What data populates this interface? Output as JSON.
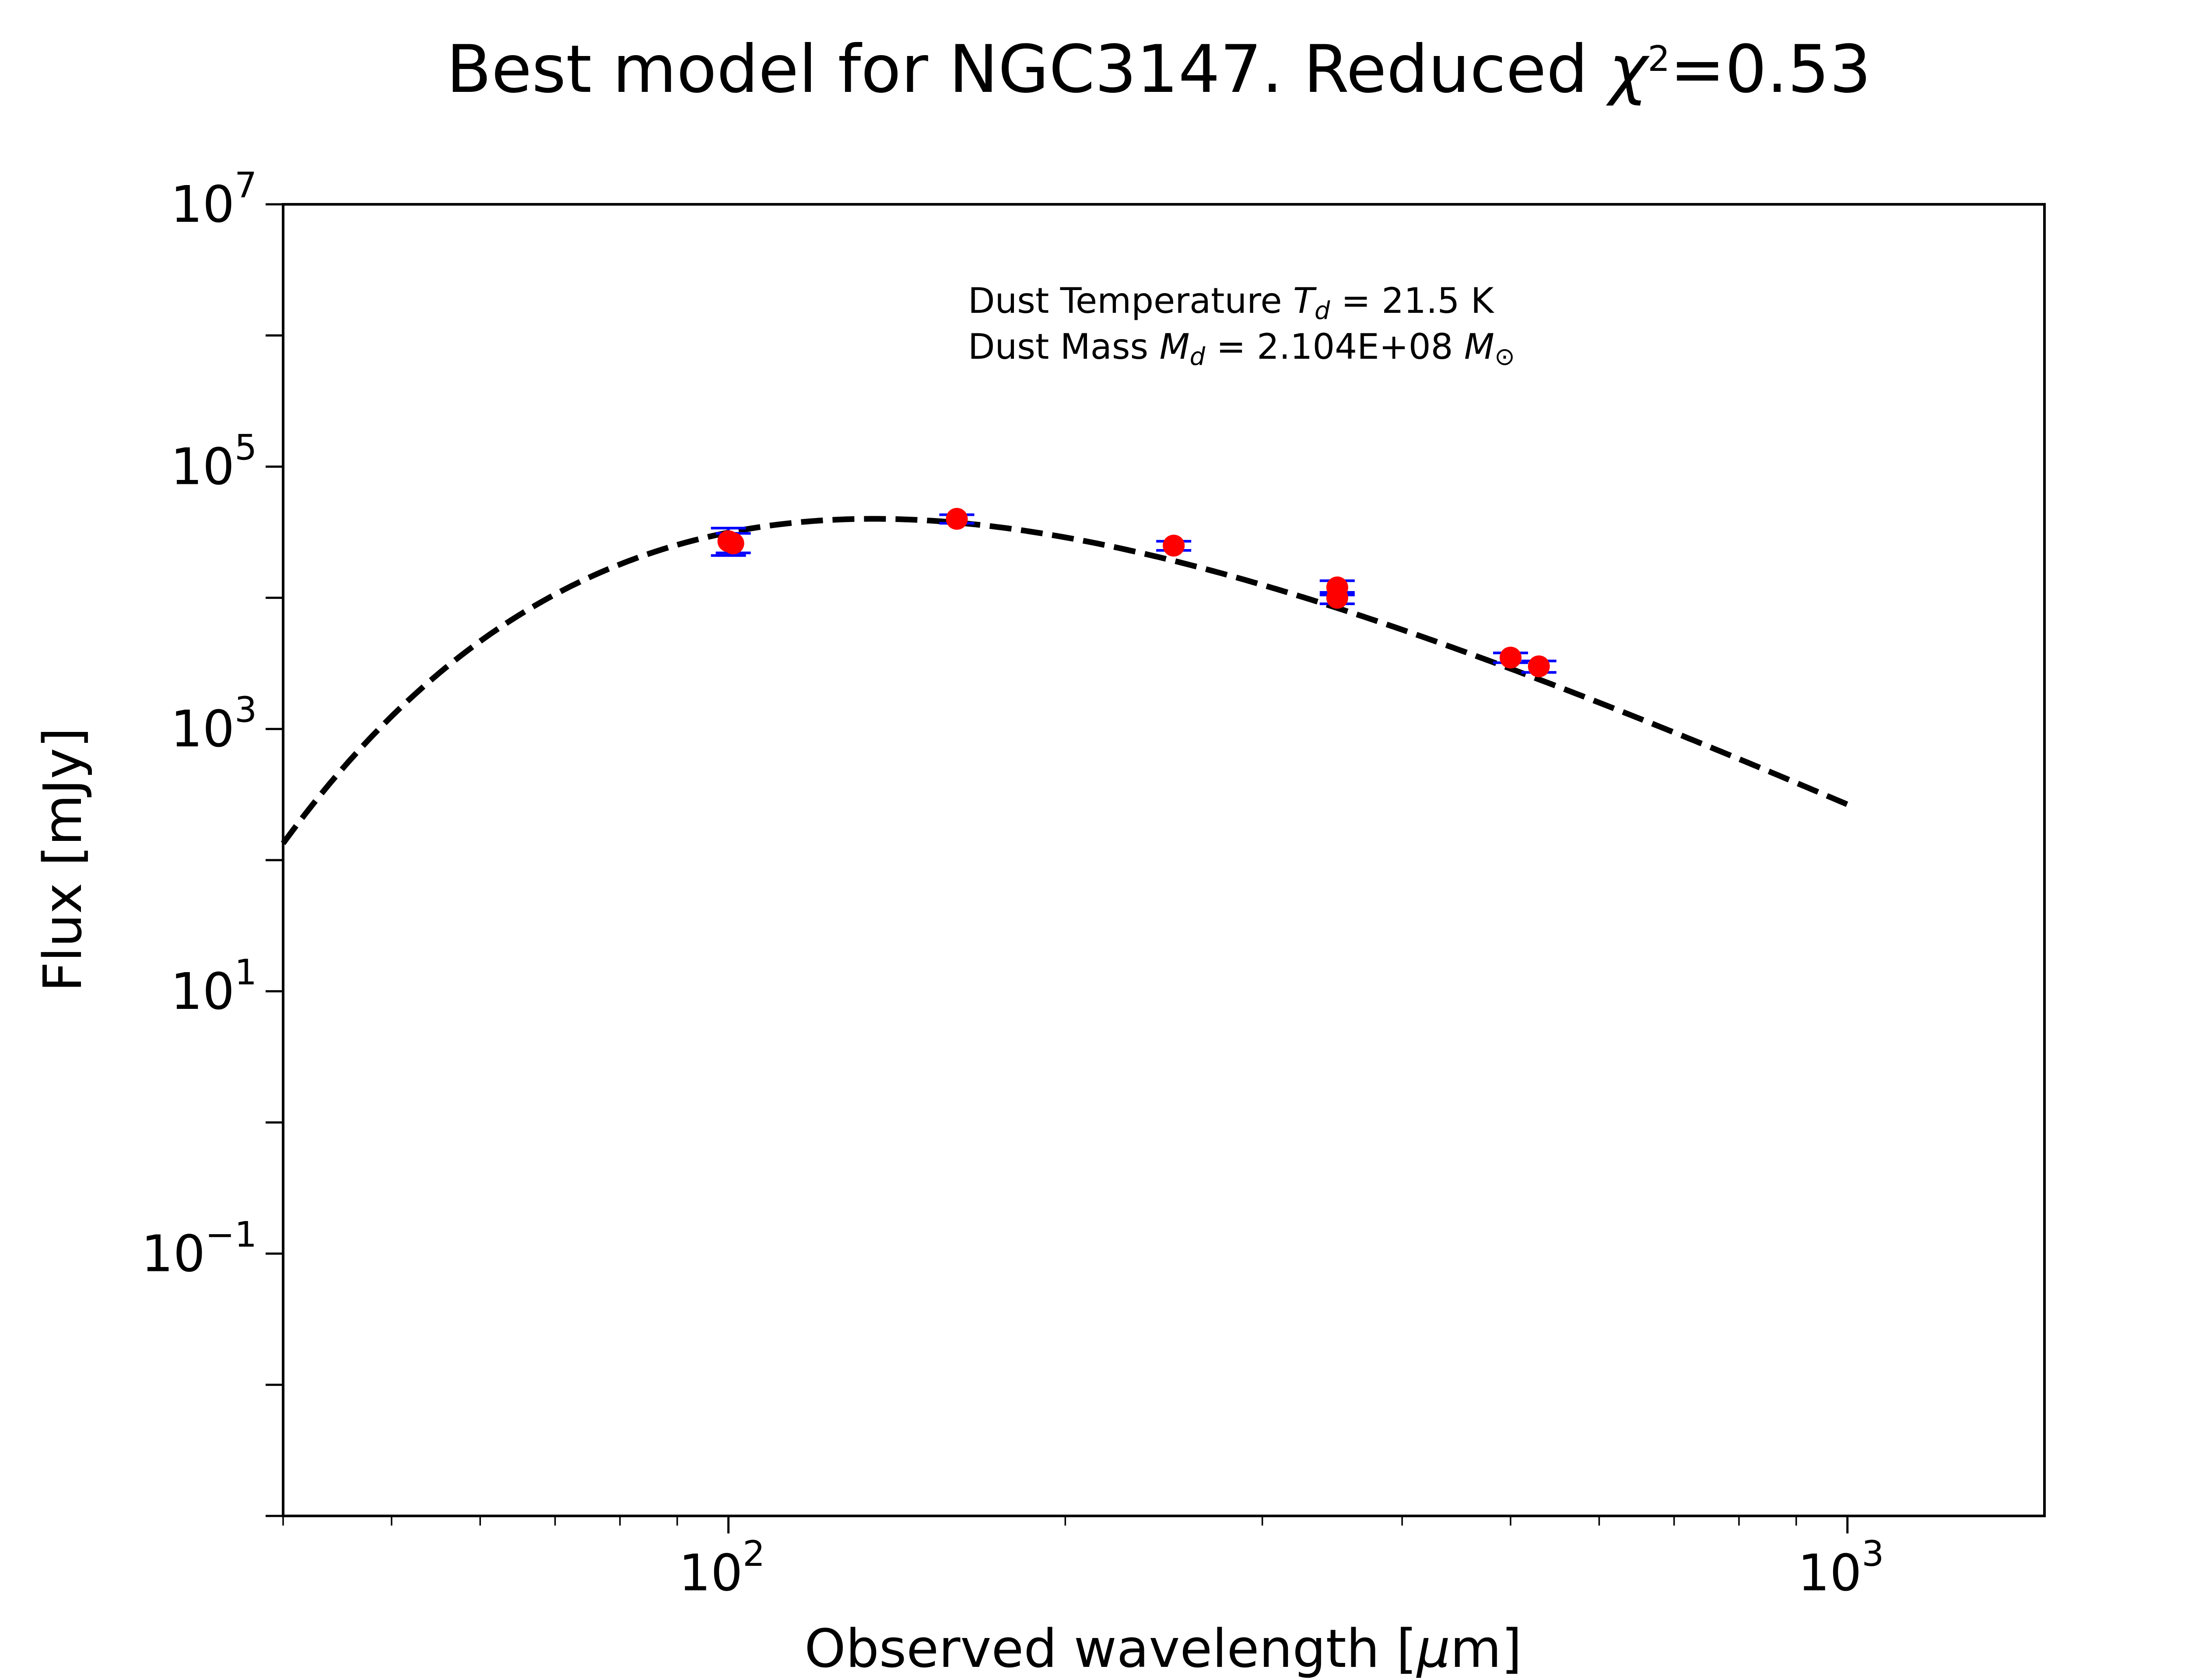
{
  "chart_data": {
    "type": "scatter",
    "title_text": "Best model for NGC3147. Reduced ",
    "title_chi": "χ",
    "title_chi_exp": "2",
    "title_value": "=0.53",
    "xlabel_text": "Observed wavelength [",
    "xlabel_unit": "μ",
    "xlabel_end": "m]",
    "ylabel": "Flux [mJy]",
    "x_scale": "log",
    "y_scale": "log",
    "xlim": [
      40,
      1500
    ],
    "ylim": [
      0.001,
      10000000
    ],
    "x_ticks": [
      {
        "value": 100,
        "base": "10",
        "exp": "2"
      },
      {
        "value": 1000,
        "base": "10",
        "exp": "3"
      }
    ],
    "y_ticks": [
      {
        "value": 0.1,
        "base": "10",
        "exp": "−1"
      },
      {
        "value": 10,
        "base": "10",
        "exp": "1"
      },
      {
        "value": 1000,
        "base": "10",
        "exp": "3"
      },
      {
        "value": 100000,
        "base": "10",
        "exp": "5"
      },
      {
        "value": 10000000,
        "base": "10",
        "exp": "7"
      }
    ],
    "annotation_lines": [
      {
        "label": "Dust Temperature ",
        "symbol": "T",
        "sub": "d",
        "value": " = 21.5 K",
        "unit": "",
        "unit_sub": ""
      },
      {
        "label": "Dust Mass ",
        "symbol": "M",
        "sub": "d",
        "value": " = 2.104E+08 ",
        "unit": "M",
        "unit_sub": "⊙"
      }
    ],
    "model": {
      "name": "",
      "style": "dashed",
      "color": "#000000",
      "temperature_K": 21.5,
      "beta": 2.0,
      "peak_flux_mJy": 40000,
      "x_range": [
        40,
        1000
      ]
    },
    "points": [
      {
        "x": 100,
        "y": 27000,
        "err_low": 21000,
        "err_high": 34000
      },
      {
        "x": 101,
        "y": 26000,
        "err_low": 22000,
        "err_high": 31000
      },
      {
        "x": 160,
        "y": 40000,
        "err_low": 37000,
        "err_high": 43000
      },
      {
        "x": 250,
        "y": 25000,
        "err_low": 23000,
        "err_high": 27000
      },
      {
        "x": 350,
        "y": 12000,
        "err_low": 10500,
        "err_high": 13500
      },
      {
        "x": 350,
        "y": 10000,
        "err_low": 9000,
        "err_high": 11000
      },
      {
        "x": 500,
        "y": 3500,
        "err_low": 3200,
        "err_high": 3800
      },
      {
        "x": 530,
        "y": 3000,
        "err_low": 2700,
        "err_high": 3300
      }
    ],
    "point_color": "#ff0000",
    "errorbar_color": "#0000ff",
    "grid": false,
    "legend": "none"
  }
}
